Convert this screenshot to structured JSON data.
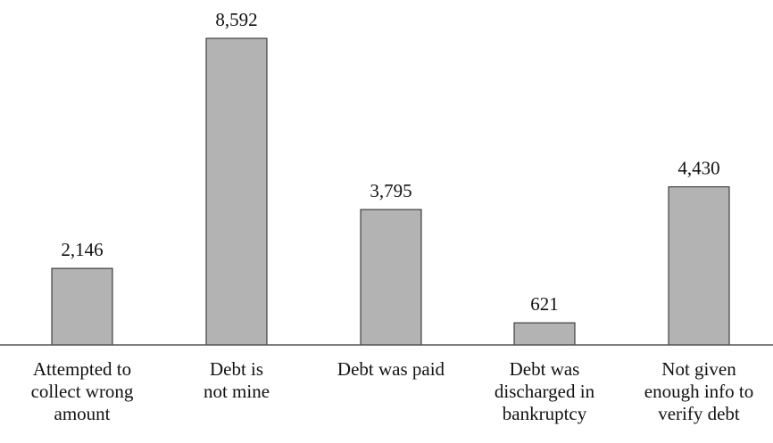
{
  "chart_data": {
    "type": "bar",
    "categories": [
      "Attempted to collect wrong amount",
      "Debt is not mine",
      "Debt was paid",
      "Debt was discharged in bankruptcy",
      "Not given enough info to verify debt"
    ],
    "category_label_lines": [
      [
        "Attempted to",
        "collect wrong",
        "amount"
      ],
      [
        "Debt is",
        "not mine"
      ],
      [
        "Debt was paid"
      ],
      [
        "Debt was",
        "discharged in",
        "bankruptcy"
      ],
      [
        "Not given",
        "enough info to",
        "verify debt"
      ]
    ],
    "values": [
      2146,
      8592,
      3795,
      621,
      4430
    ],
    "value_labels": [
      "2,146",
      "8,592",
      "3,795",
      "621",
      "4,430"
    ],
    "title": "",
    "xlabel": "",
    "ylabel": "",
    "ylim": [
      0,
      8592
    ],
    "grid": false,
    "legend": "none",
    "bar_color": "#b3b3b3",
    "bar_edge_color": "#222222",
    "axis_color": "#555555"
  }
}
